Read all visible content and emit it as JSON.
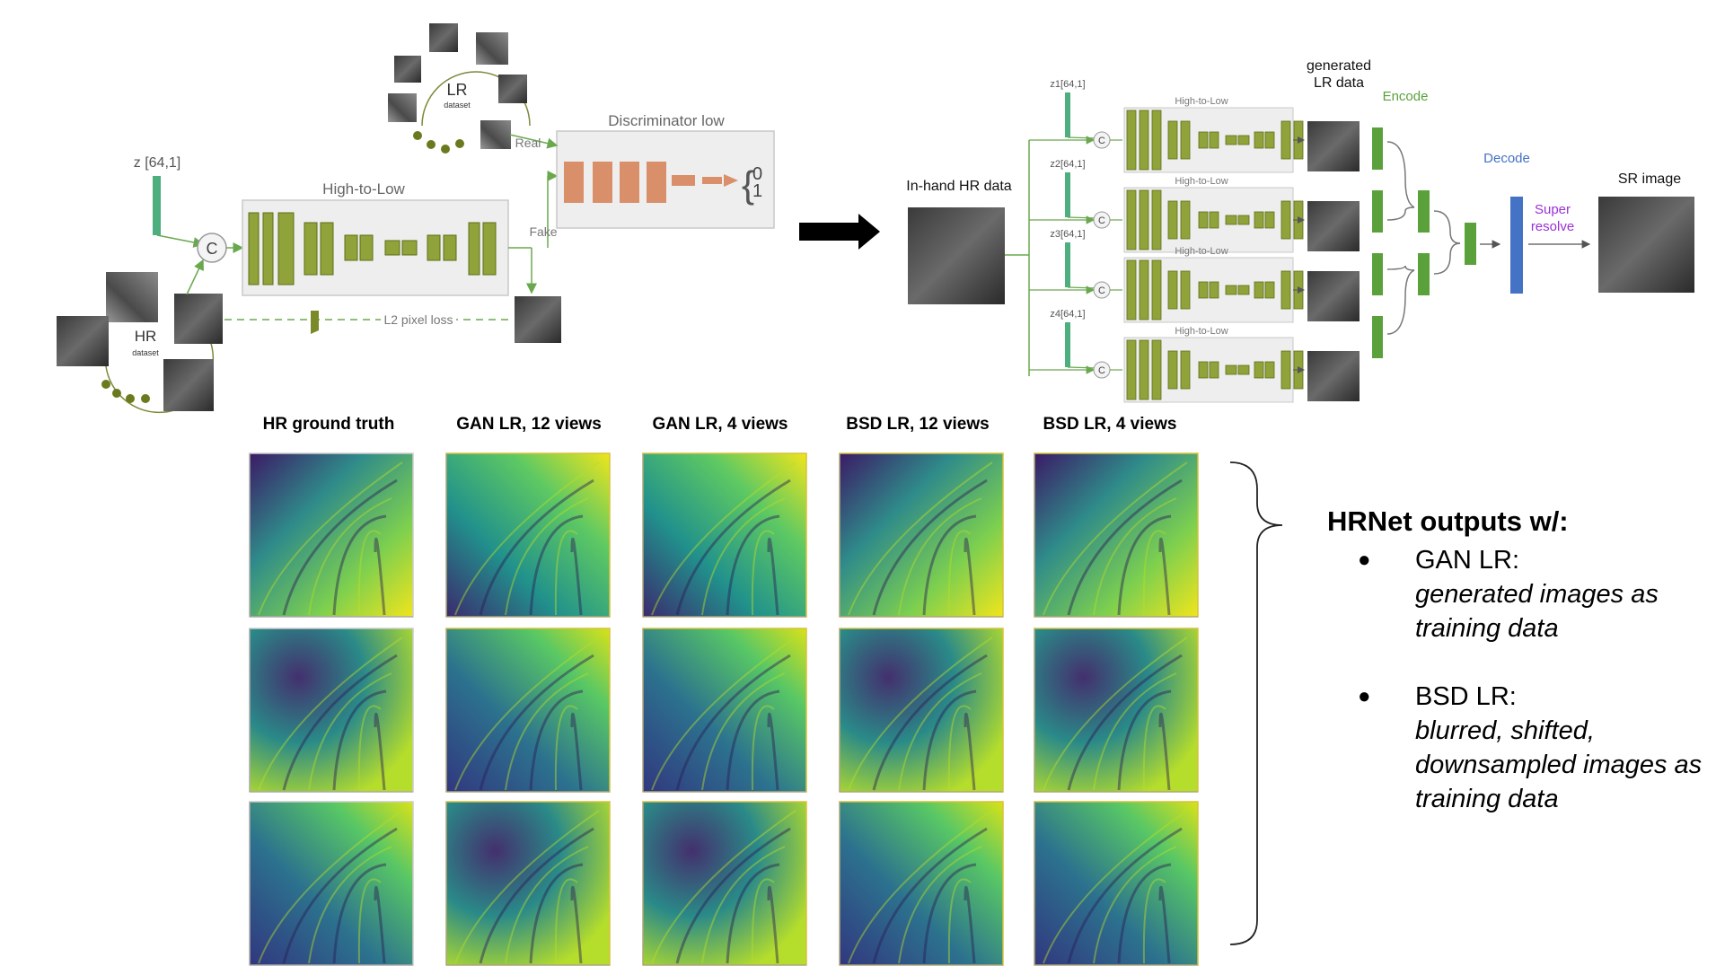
{
  "left_diagram": {
    "z_label": "z [64,1]",
    "concat_symbol": "C",
    "high_to_low_label": "High-to-Low",
    "hr_dataset": {
      "title": "HR",
      "subtitle": "dataset"
    },
    "lr_dataset": {
      "title": "LR",
      "subtitle": "dataset"
    },
    "discriminator_label": "Discriminator low",
    "real_label": "Real",
    "fake_label": "Fake",
    "l2_loss_label": "L2 pixel loss",
    "output_zero": "0",
    "output_one": "1"
  },
  "right_diagram": {
    "in_hand_label": "In-hand HR data",
    "generated_label_line1": "generated",
    "generated_label_line2": "LR data",
    "encode_label": "Encode",
    "decode_label": "Decode",
    "sr_label": "SR image",
    "super_resolve_line1": "Super",
    "super_resolve_line2": "resolve",
    "z_labels": [
      "z1[64,1]",
      "z2[64,1]",
      "z3[64,1]",
      "z4[64,1]"
    ],
    "high_to_low_label": "High-to-Low",
    "concat_symbol": "C"
  },
  "colors": {
    "generator_block": "#8fa33a",
    "discriminator_block": "#d9906a",
    "z_vector": "#4caf7d",
    "encode_green": "#5aa13c",
    "decode_blue": "#4472c4",
    "super_resolve_purple": "#9b30d9",
    "encode_label_color": "#5aa13c",
    "decode_label_color": "#4472c4"
  },
  "columns": [
    {
      "title": "HR ground truth"
    },
    {
      "title": "GAN LR, 12 views"
    },
    {
      "title": "GAN LR, 4 views"
    },
    {
      "title": "BSD LR, 12 views"
    },
    {
      "title": "BSD LR, 4 views"
    }
  ],
  "sidebar": {
    "heading": "HRNet outputs w/:",
    "items": [
      {
        "bullet": "●",
        "label": "GAN LR:",
        "desc": "generated images as training data"
      },
      {
        "bullet": "●",
        "label": "BSD LR:",
        "desc": "blurred, shifted, downsampled images as training data"
      }
    ]
  }
}
